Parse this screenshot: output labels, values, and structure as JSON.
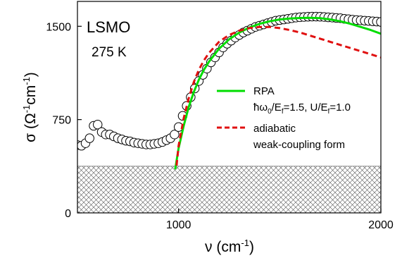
{
  "chart_data": {
    "type": "line",
    "title": "",
    "annotations": {
      "material": "LSMO",
      "temperature": "275 K"
    },
    "xlabel": {
      "symbol": "ν",
      "unit_base": "cm",
      "unit_exp": "-1"
    },
    "ylabel": {
      "symbol": "σ",
      "unit_a": "Ω",
      "unit_a_exp": "-1",
      "unit_b": "cm",
      "unit_b_exp": "-1"
    },
    "xlim": [
      500,
      2000
    ],
    "ylim": [
      0,
      1700
    ],
    "xticks": [
      1000,
      2000
    ],
    "yticks": [
      0,
      750,
      1500
    ],
    "grid": false,
    "legend_position": "center-right",
    "hatched_region": {
      "y_from": 0,
      "y_to": 375,
      "x_from": 500,
      "x_to": 2000,
      "color": "#555555"
    },
    "series": [
      {
        "name": "",
        "style": "open-circles",
        "color": "#000000",
        "x": [
          500,
          520,
          540,
          560,
          580,
          600,
          620,
          640,
          660,
          680,
          700,
          720,
          740,
          760,
          780,
          800,
          820,
          840,
          860,
          880,
          900,
          920,
          940,
          960,
          980,
          1000,
          1020,
          1040,
          1060,
          1080,
          1100,
          1120,
          1140,
          1160,
          1180,
          1200,
          1220,
          1240,
          1260,
          1280,
          1300,
          1320,
          1340,
          1360,
          1380,
          1400,
          1420,
          1440,
          1460,
          1480,
          1500,
          1520,
          1540,
          1560,
          1580,
          1600,
          1620,
          1640,
          1660,
          1680,
          1700,
          1720,
          1740,
          1760,
          1780,
          1800,
          1820,
          1840,
          1860,
          1880,
          1900,
          1920,
          1940,
          1960,
          1980,
          2000
        ],
        "y": [
          545,
          540,
          560,
          600,
          700,
          710,
          650,
          630,
          630,
          615,
          600,
          590,
          580,
          575,
          565,
          560,
          555,
          550,
          550,
          555,
          560,
          570,
          585,
          600,
          630,
          690,
          780,
          860,
          930,
          1000,
          1060,
          1110,
          1160,
          1210,
          1250,
          1290,
          1330,
          1360,
          1385,
          1410,
          1430,
          1450,
          1465,
          1480,
          1495,
          1505,
          1515,
          1525,
          1535,
          1545,
          1550,
          1555,
          1560,
          1565,
          1570,
          1573,
          1575,
          1577,
          1578,
          1578,
          1577,
          1575,
          1572,
          1570,
          1567,
          1565,
          1560,
          1557,
          1553,
          1550,
          1548,
          1545,
          1543,
          1540,
          1538,
          1535
        ]
      },
      {
        "name": "RPA",
        "label_line2_prefix": "ħω",
        "label_line2_sub1": "0",
        "label_line2_mid": "/E",
        "label_line2_sub2": "f",
        "label_line2_value1": "=1.5, U/E",
        "label_line2_sub3": "f",
        "label_line2_value2": "=1.0",
        "style": "solid",
        "color": "#00dd00",
        "x": [
          983,
          1000,
          1025,
          1050,
          1075,
          1100,
          1125,
          1150,
          1200,
          1250,
          1300,
          1350,
          1400,
          1450,
          1500,
          1550,
          1600,
          1650,
          1700,
          1750,
          1800,
          1850,
          1900,
          1950,
          2000
        ],
        "y": [
          350,
          520,
          700,
          850,
          970,
          1070,
          1150,
          1215,
          1320,
          1395,
          1450,
          1490,
          1520,
          1540,
          1555,
          1563,
          1567,
          1568,
          1565,
          1555,
          1540,
          1520,
          1495,
          1470,
          1440
        ]
      },
      {
        "name": "adiabatic",
        "label_line2": "weak-coupling form",
        "style": "dashed",
        "color": "#e01010",
        "x": [
          990,
          1000,
          1025,
          1050,
          1075,
          1100,
          1125,
          1150,
          1200,
          1250,
          1300,
          1350,
          1400,
          1450,
          1500,
          1550,
          1600,
          1650,
          1700,
          1750,
          1800,
          1850,
          1900,
          1950,
          2000
        ],
        "y": [
          380,
          540,
          760,
          920,
          1050,
          1150,
          1225,
          1285,
          1375,
          1430,
          1465,
          1485,
          1495,
          1495,
          1485,
          1470,
          1450,
          1425,
          1400,
          1375,
          1350,
          1325,
          1300,
          1275,
          1250
        ]
      }
    ]
  }
}
